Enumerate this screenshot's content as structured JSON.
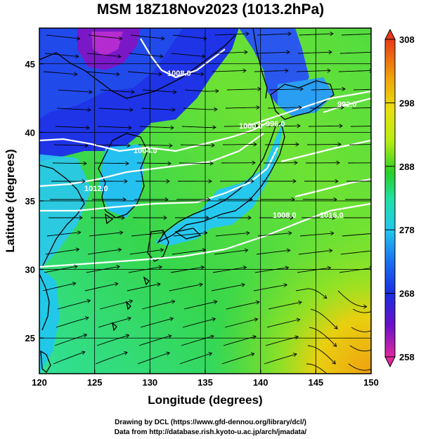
{
  "title": "MSM 18Z18Nov2023 (1013.2hPa)",
  "xlabel": "Longitude (degrees)",
  "ylabel": "Latitude  (degrees)",
  "credit_line1": "Drawing by DCL (https://www.gfd-dennou.org/library/dcl/)",
  "credit_line2": "Data from http://database.rish.kyoto-u.ac.jp/arch/jmadata/",
  "map": {
    "lon_range": [
      120,
      150
    ],
    "lat_range": [
      22.4,
      47.6
    ],
    "lon_ticks": [
      "120",
      "125",
      "130",
      "135",
      "140",
      "145",
      "150"
    ],
    "lat_ticks": [
      "25",
      "30",
      "35",
      "40",
      "45"
    ],
    "grid": true
  },
  "colorbar": {
    "min": 258,
    "max": 308,
    "tick_labels": [
      "308",
      "298",
      "288",
      "278",
      "268",
      "258"
    ],
    "colors": [
      "#e02890",
      "#6a10c8",
      "#1a2ee0",
      "#22c8f0",
      "#20e0a0",
      "#28d028",
      "#d8ea10",
      "#f0a008",
      "#e83a18"
    ]
  },
  "contours": {
    "color": "#ffffff",
    "labels": [
      "1008.0",
      "1000.0",
      "996.0",
      "1004.0",
      "1008.0",
      "1012.0",
      "1016.0",
      "992.0"
    ]
  },
  "colors": {
    "land_outline": "#000000",
    "grid_line": "#000000",
    "streamline": "#000000"
  }
}
